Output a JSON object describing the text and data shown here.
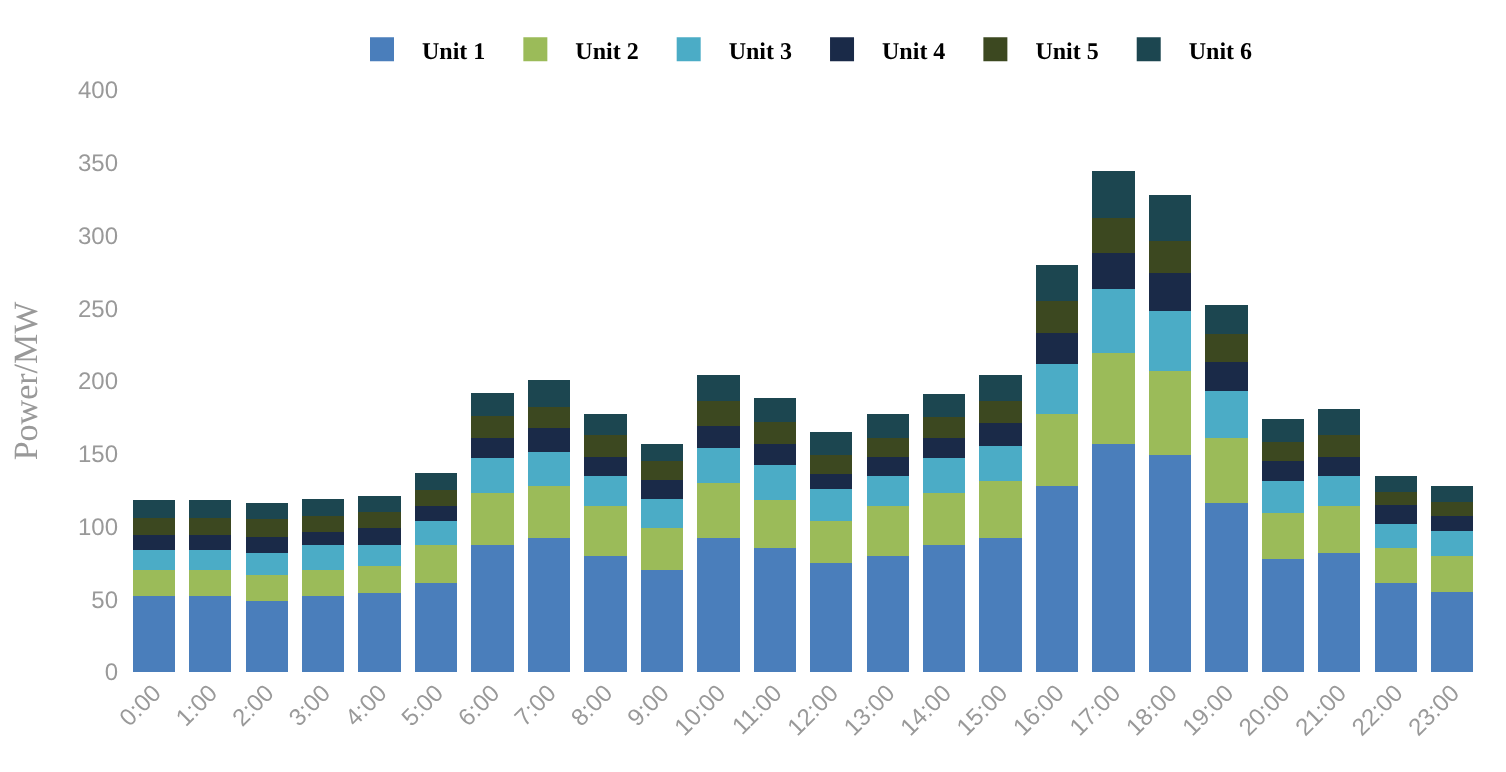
{
  "chart_data": {
    "type": "bar",
    "stacked": true,
    "ylabel": "Power/MW",
    "categories": [
      "0:00",
      "1:00",
      "2:00",
      "3:00",
      "4:00",
      "5:00",
      "6:00",
      "7:00",
      "8:00",
      "9:00",
      "10:00",
      "11:00",
      "12:00",
      "13:00",
      "14:00",
      "15:00",
      "16:00",
      "17:00",
      "18:00",
      "19:00",
      "20:00",
      "21:00",
      "22:00",
      "23:00"
    ],
    "series": [
      {
        "name": "Unit 1",
        "color": "#4a7ebb",
        "values": [
          52,
          52,
          49,
          52,
          54,
          61,
          87,
          92,
          80,
          70,
          92,
          85,
          75,
          80,
          87,
          92,
          128,
          157,
          149,
          116,
          78,
          82,
          61,
          55
        ]
      },
      {
        "name": "Unit 2",
        "color": "#9bbb59",
        "values": [
          18,
          18,
          18,
          18,
          19,
          26,
          36,
          36,
          34,
          29,
          38,
          33,
          29,
          34,
          36,
          39,
          49,
          62,
          58,
          45,
          31,
          32,
          24,
          25
        ]
      },
      {
        "name": "Unit 3",
        "color": "#4bacc6",
        "values": [
          14,
          14,
          15,
          17,
          14,
          17,
          24,
          23,
          21,
          20,
          24,
          24,
          22,
          21,
          24,
          24,
          35,
          44,
          41,
          32,
          22,
          21,
          17,
          17
        ]
      },
      {
        "name": "Unit 4",
        "color": "#1a2a48",
        "values": [
          10,
          10,
          11,
          9,
          12,
          10,
          14,
          17,
          13,
          13,
          15,
          15,
          10,
          13,
          14,
          16,
          21,
          25,
          26,
          20,
          14,
          13,
          13,
          10
        ]
      },
      {
        "name": "Unit 5",
        "color": "#3c4820",
        "values": [
          12,
          12,
          12,
          11,
          11,
          11,
          15,
          14,
          15,
          13,
          17,
          15,
          13,
          13,
          14,
          15,
          22,
          24,
          22,
          19,
          13,
          15,
          9,
          10
        ]
      },
      {
        "name": "Unit 6",
        "color": "#1c4650",
        "values": [
          12,
          12,
          11,
          12,
          11,
          12,
          16,
          19,
          14,
          12,
          18,
          16,
          16,
          16,
          16,
          18,
          25,
          32,
          32,
          20,
          16,
          18,
          11,
          11
        ]
      }
    ],
    "ylim": [
      0,
      400
    ],
    "yticks": [
      0,
      50,
      100,
      150,
      200,
      250,
      300,
      350,
      400
    ],
    "legend": "top"
  }
}
